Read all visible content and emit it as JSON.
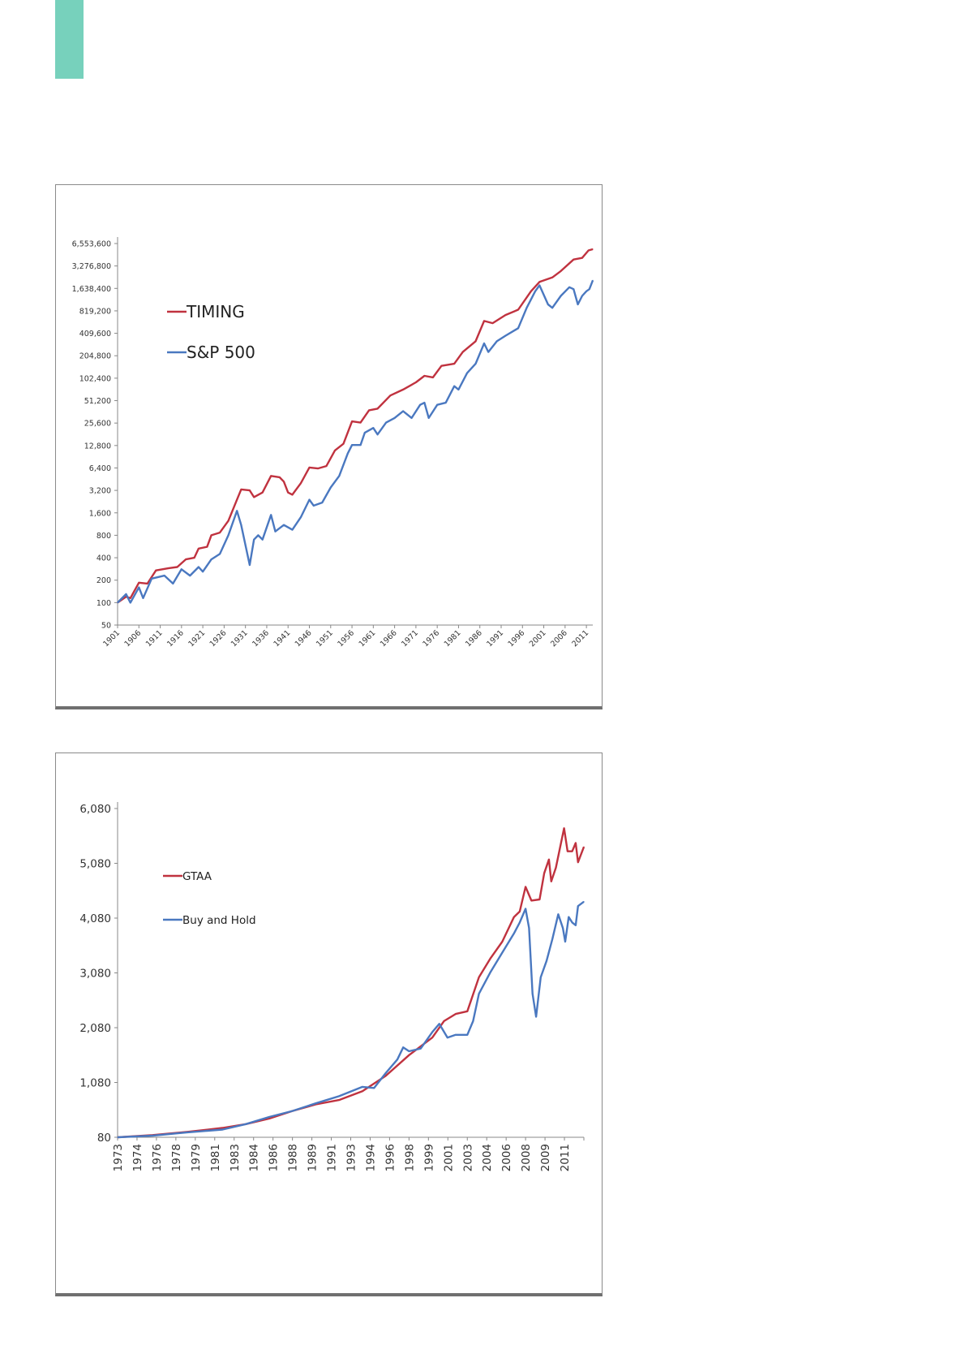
{
  "colors": {
    "accent_tab": "#77d1bc",
    "red": "#c0323f",
    "blue": "#4a78c0"
  },
  "chart_data": [
    {
      "type": "line",
      "title": "",
      "xlabel": "",
      "ylabel": "",
      "yscale": "log2",
      "ylim": [
        50,
        6553600
      ],
      "xlim": [
        1901,
        2012.5
      ],
      "grid": false,
      "legend_position": "top-left",
      "yticks": [
        "50",
        "100",
        "200",
        "400",
        "800",
        "1,600",
        "3,200",
        "6,400",
        "12,800",
        "25,600",
        "51,200",
        "102,400",
        "204,800",
        "409,600",
        "819,200",
        "1,638,400",
        "3,276,800",
        "6,553,600"
      ],
      "ytick_values": [
        50,
        100,
        200,
        400,
        800,
        1600,
        3200,
        6400,
        12800,
        25600,
        51200,
        102400,
        204800,
        409600,
        819200,
        1638400,
        3276800,
        6553600
      ],
      "xticks": [
        "1901",
        "1906",
        "1911",
        "1916",
        "1921",
        "1926",
        "1931",
        "1936",
        "1941",
        "1946",
        "1951",
        "1956",
        "1961",
        "1966",
        "1971",
        "1976",
        "1981",
        "1986",
        "1991",
        "1996",
        "2001",
        "2006",
        "2011"
      ],
      "series": [
        {
          "name": "TIMING",
          "color": "#c0323f",
          "points": [
            [
              1901,
              100
            ],
            [
              1903,
              120
            ],
            [
              1904,
              115
            ],
            [
              1906,
              185
            ],
            [
              1908,
              180
            ],
            [
              1910,
              270
            ],
            [
              1913,
              290
            ],
            [
              1915,
              300
            ],
            [
              1917,
              380
            ],
            [
              1919,
              400
            ],
            [
              1920,
              530
            ],
            [
              1922,
              560
            ],
            [
              1923,
              800
            ],
            [
              1925,
              870
            ],
            [
              1927,
              1250
            ],
            [
              1929,
              2400
            ],
            [
              1930,
              3300
            ],
            [
              1932,
              3200
            ],
            [
              1933,
              2600
            ],
            [
              1935,
              3000
            ],
            [
              1937,
              5000
            ],
            [
              1939,
              4800
            ],
            [
              1940,
              4200
            ],
            [
              1941,
              3000
            ],
            [
              1942,
              2800
            ],
            [
              1944,
              4000
            ],
            [
              1946,
              6500
            ],
            [
              1948,
              6300
            ],
            [
              1950,
              6800
            ],
            [
              1952,
              11000
            ],
            [
              1954,
              13500
            ],
            [
              1956,
              27000
            ],
            [
              1958,
              26000
            ],
            [
              1960,
              38000
            ],
            [
              1962,
              40000
            ],
            [
              1965,
              60000
            ],
            [
              1968,
              72000
            ],
            [
              1971,
              90000
            ],
            [
              1973,
              110000
            ],
            [
              1975,
              105000
            ],
            [
              1977,
              150000
            ],
            [
              1980,
              160000
            ],
            [
              1982,
              230000
            ],
            [
              1985,
              320000
            ],
            [
              1987,
              600000
            ],
            [
              1989,
              560000
            ],
            [
              1992,
              720000
            ],
            [
              1995,
              850000
            ],
            [
              1998,
              1500000
            ],
            [
              2000,
              2000000
            ],
            [
              2003,
              2300000
            ],
            [
              2005,
              2800000
            ],
            [
              2008,
              4000000
            ],
            [
              2010,
              4200000
            ],
            [
              2011.5,
              5300000
            ],
            [
              2012.5,
              5500000
            ]
          ]
        },
        {
          "name": "S&P 500",
          "color": "#4a78c0",
          "points": [
            [
              1901,
              100
            ],
            [
              1903,
              130
            ],
            [
              1904,
              100
            ],
            [
              1906,
              160
            ],
            [
              1907,
              115
            ],
            [
              1909,
              210
            ],
            [
              1912,
              230
            ],
            [
              1914,
              180
            ],
            [
              1916,
              280
            ],
            [
              1918,
              230
            ],
            [
              1920,
              300
            ],
            [
              1921,
              260
            ],
            [
              1923,
              380
            ],
            [
              1925,
              450
            ],
            [
              1927,
              800
            ],
            [
              1929,
              1700
            ],
            [
              1930,
              1100
            ],
            [
              1932,
              320
            ],
            [
              1933,
              700
            ],
            [
              1934,
              800
            ],
            [
              1935,
              700
            ],
            [
              1937,
              1500
            ],
            [
              1938,
              900
            ],
            [
              1940,
              1100
            ],
            [
              1942,
              950
            ],
            [
              1944,
              1400
            ],
            [
              1946,
              2400
            ],
            [
              1947,
              2000
            ],
            [
              1949,
              2200
            ],
            [
              1951,
              3500
            ],
            [
              1953,
              5000
            ],
            [
              1955,
              10000
            ],
            [
              1956,
              13000
            ],
            [
              1958,
              13000
            ],
            [
              1959,
              19000
            ],
            [
              1961,
              22000
            ],
            [
              1962,
              18000
            ],
            [
              1964,
              26000
            ],
            [
              1966,
              30000
            ],
            [
              1968,
              37000
            ],
            [
              1970,
              30000
            ],
            [
              1972,
              45000
            ],
            [
              1973,
              48000
            ],
            [
              1974,
              30000
            ],
            [
              1976,
              45000
            ],
            [
              1978,
              48000
            ],
            [
              1980,
              80000
            ],
            [
              1981,
              72000
            ],
            [
              1983,
              120000
            ],
            [
              1985,
              160000
            ],
            [
              1987,
              300000
            ],
            [
              1988,
              230000
            ],
            [
              1990,
              320000
            ],
            [
              1992,
              380000
            ],
            [
              1995,
              480000
            ],
            [
              1997,
              900000
            ],
            [
              1999,
              1500000
            ],
            [
              2000,
              1800000
            ],
            [
              2002,
              1000000
            ],
            [
              2003,
              900000
            ],
            [
              2005,
              1300000
            ],
            [
              2007,
              1700000
            ],
            [
              2008,
              1600000
            ],
            [
              2009,
              1000000
            ],
            [
              2010,
              1300000
            ],
            [
              2011,
              1500000
            ],
            [
              2011.7,
              1600000
            ],
            [
              2012.5,
              2100000
            ]
          ]
        }
      ]
    },
    {
      "type": "line",
      "title": "",
      "xlabel": "",
      "ylabel": "",
      "yscale": "linear",
      "ylim": [
        80,
        6080
      ],
      "xlim": [
        1973,
        2013
      ],
      "grid": false,
      "legend_position": "top-left",
      "yticks": [
        "80",
        "1,080",
        "2,080",
        "3,080",
        "4,080",
        "5,080",
        "6,080"
      ],
      "ytick_values": [
        80,
        1080,
        2080,
        3080,
        4080,
        5080,
        6080
      ],
      "xticks": [
        "1973",
        "1974",
        "1976",
        "1978",
        "1979",
        "1981",
        "1983",
        "1984",
        "1986",
        "1988",
        "1989",
        "1991",
        "1993",
        "1994",
        "1996",
        "1998",
        "1999",
        "2001",
        "2003",
        "2004",
        "2006",
        "2008",
        "2009",
        "2011"
      ],
      "series": [
        {
          "name": "GTAA",
          "color": "#c0323f",
          "points": [
            [
              1973,
              80
            ],
            [
              1976,
              120
            ],
            [
              1979,
              180
            ],
            [
              1982,
              250
            ],
            [
              1984,
              320
            ],
            [
              1986,
              420
            ],
            [
              1988,
              560
            ],
            [
              1990,
              680
            ],
            [
              1992,
              760
            ],
            [
              1994,
              920
            ],
            [
              1996,
              1200
            ],
            [
              1998,
              1580
            ],
            [
              2000,
              1900
            ],
            [
              2001,
              2200
            ],
            [
              2002,
              2330
            ],
            [
              2003,
              2380
            ],
            [
              2004,
              3000
            ],
            [
              2005,
              3350
            ],
            [
              2006,
              3650
            ],
            [
              2007,
              4100
            ],
            [
              2007.5,
              4200
            ],
            [
              2008,
              4650
            ],
            [
              2008.5,
              4400
            ],
            [
              2009.2,
              4420
            ],
            [
              2009.6,
              4900
            ],
            [
              2010,
              5150
            ],
            [
              2010.2,
              4750
            ],
            [
              2010.6,
              5000
            ],
            [
              2011.3,
              5720
            ],
            [
              2011.6,
              5300
            ],
            [
              2012,
              5300
            ],
            [
              2012.3,
              5450
            ],
            [
              2012.5,
              5100
            ],
            [
              2013,
              5380
            ]
          ]
        },
        {
          "name": "Buy and Hold",
          "color": "#4a78c0",
          "points": [
            [
              1973,
              80
            ],
            [
              1976,
              110
            ],
            [
              1979,
              170
            ],
            [
              1982,
              220
            ],
            [
              1984,
              320
            ],
            [
              1986,
              450
            ],
            [
              1988,
              560
            ],
            [
              1990,
              700
            ],
            [
              1992,
              830
            ],
            [
              1994,
              1000
            ],
            [
              1995,
              980
            ],
            [
              1996,
              1250
            ],
            [
              1997,
              1500
            ],
            [
              1997.5,
              1720
            ],
            [
              1998,
              1650
            ],
            [
              1999,
              1700
            ],
            [
              2000,
              2000
            ],
            [
              2000.6,
              2150
            ],
            [
              2001.3,
              1900
            ],
            [
              2002,
              1950
            ],
            [
              2003,
              1950
            ],
            [
              2003.5,
              2200
            ],
            [
              2004,
              2700
            ],
            [
              2005,
              3100
            ],
            [
              2006,
              3450
            ],
            [
              2007,
              3800
            ],
            [
              2007.5,
              4000
            ],
            [
              2008,
              4250
            ],
            [
              2008.3,
              3900
            ],
            [
              2008.6,
              2700
            ],
            [
              2008.9,
              2280
            ],
            [
              2009.3,
              3000
            ],
            [
              2009.8,
              3300
            ],
            [
              2010.3,
              3700
            ],
            [
              2010.8,
              4150
            ],
            [
              2011.2,
              3900
            ],
            [
              2011.4,
              3650
            ],
            [
              2011.7,
              4100
            ],
            [
              2012,
              4000
            ],
            [
              2012.3,
              3950
            ],
            [
              2012.5,
              4300
            ],
            [
              2013,
              4380
            ]
          ]
        }
      ]
    }
  ]
}
